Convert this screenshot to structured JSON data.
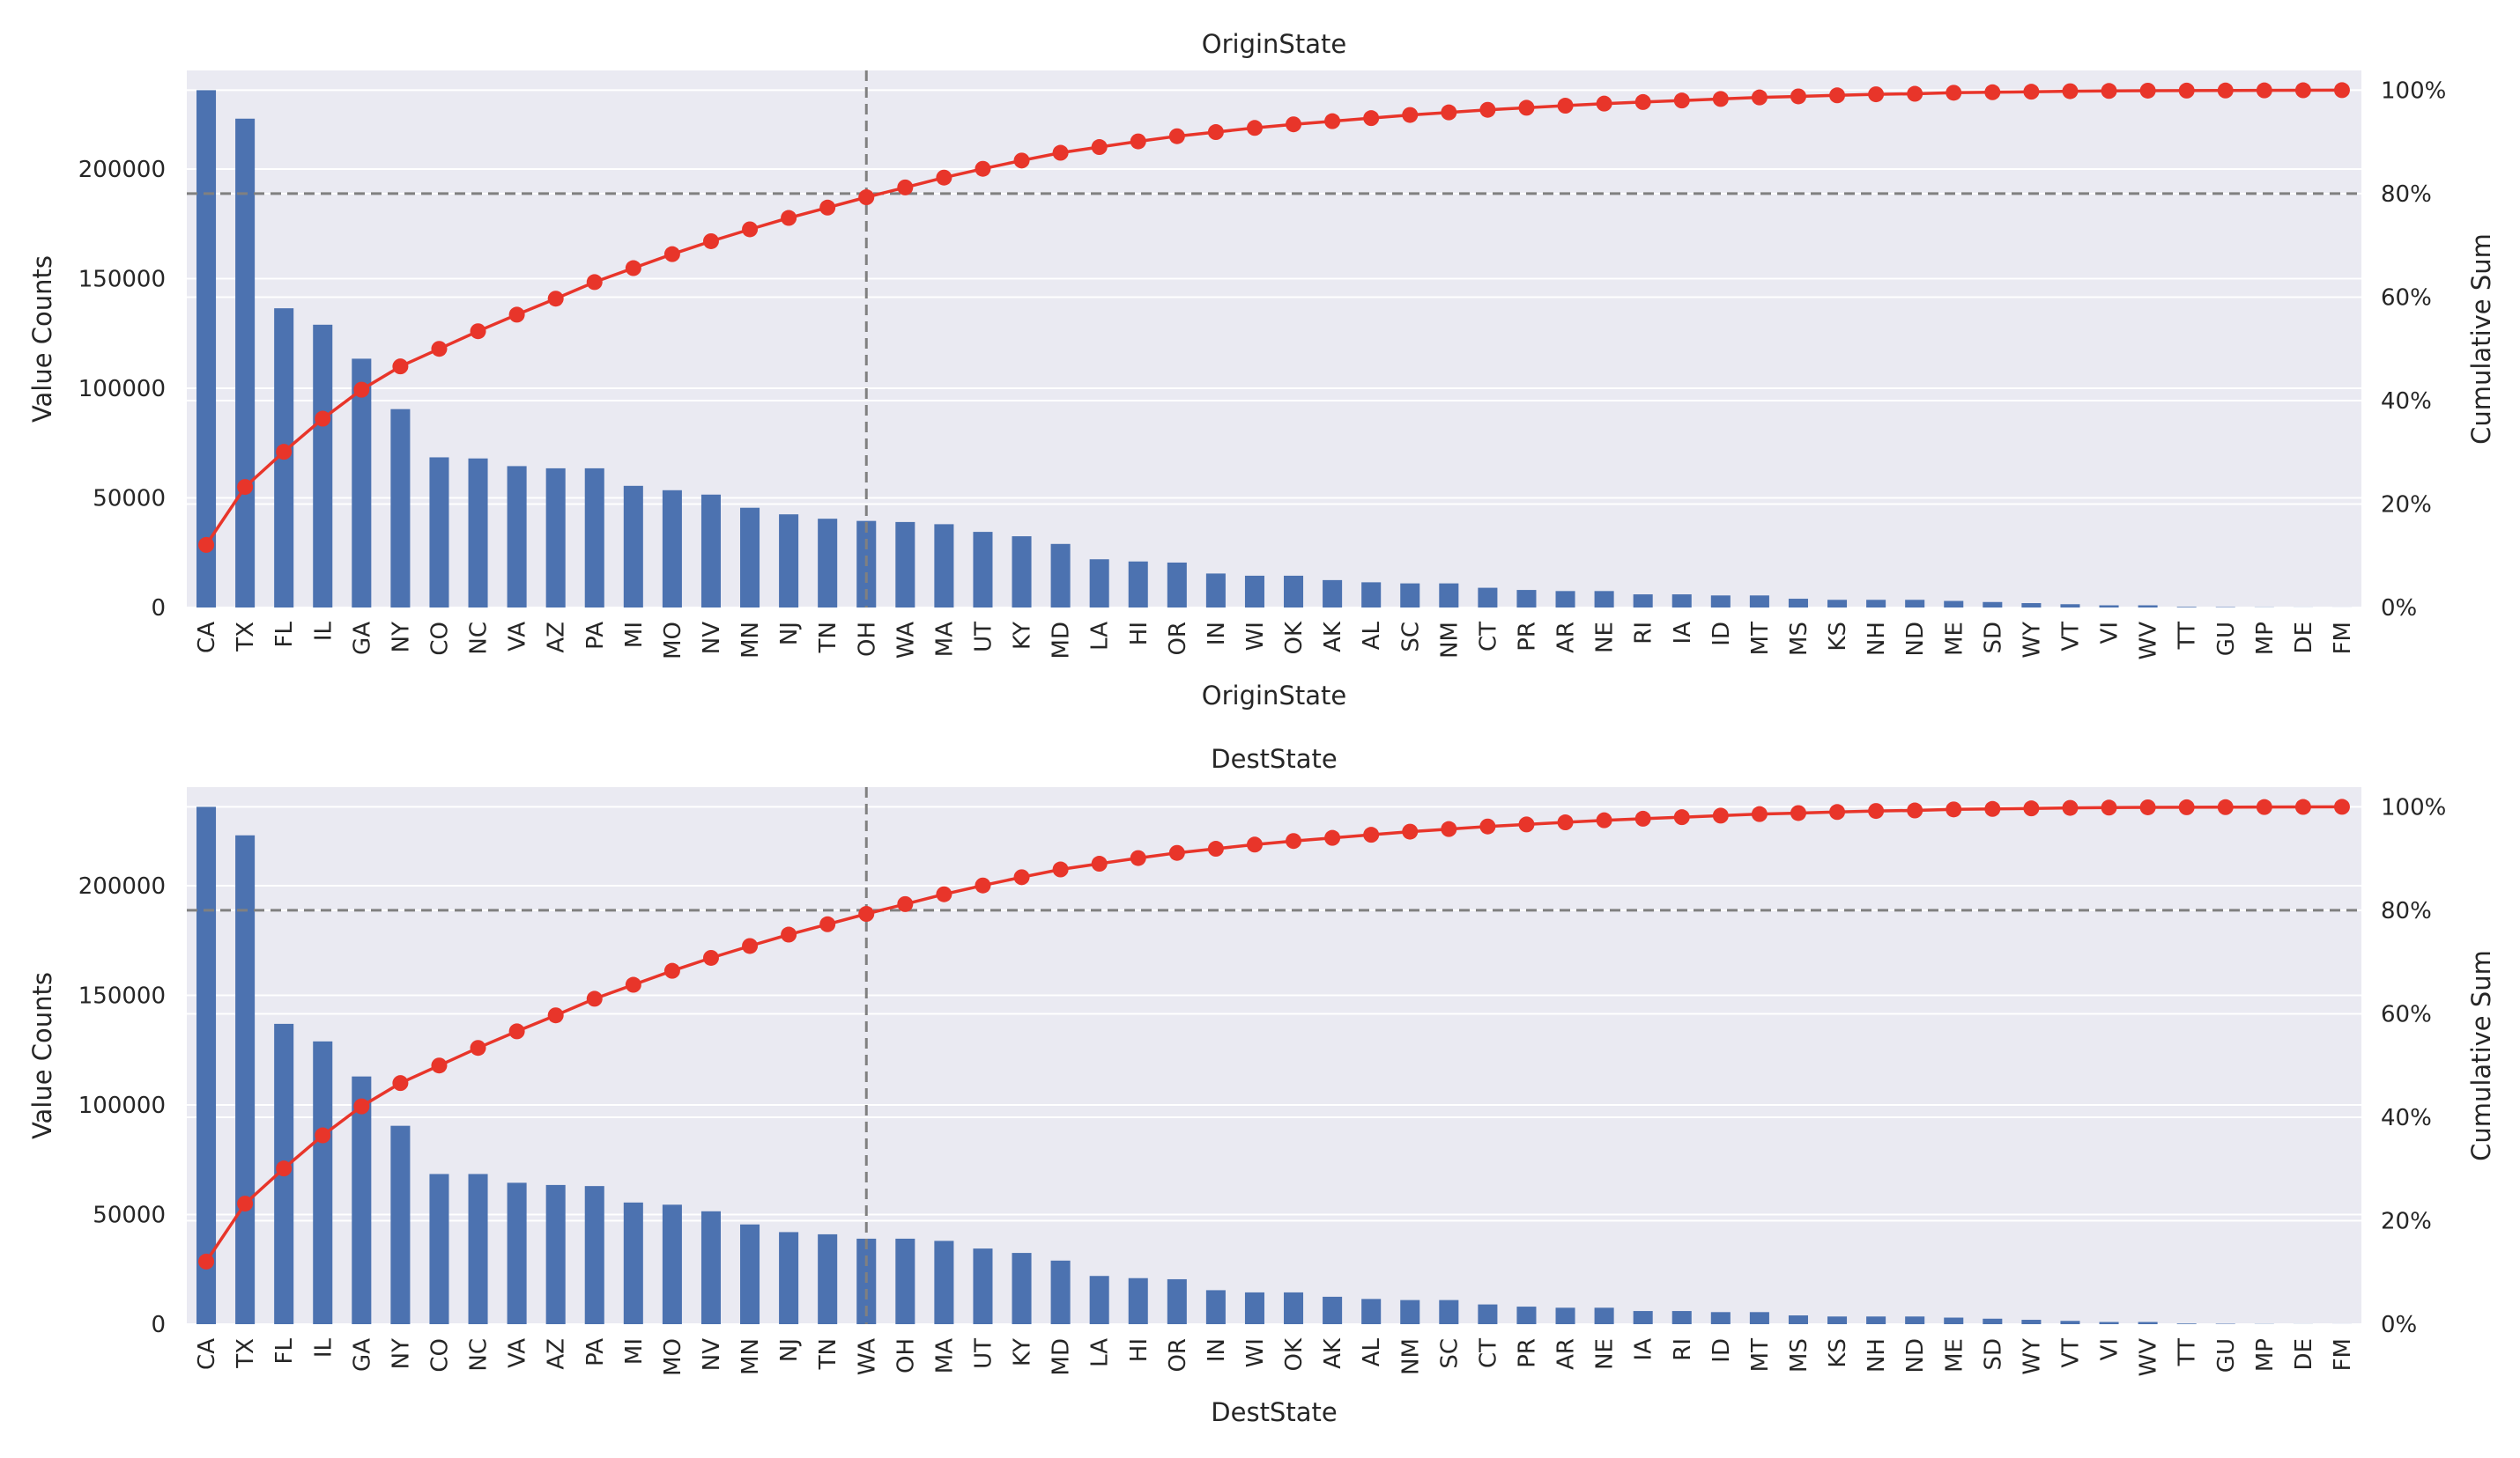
{
  "colors": {
    "bar": "#4c72b0",
    "line": "#e8352a",
    "background": "#eaeaf2",
    "grid": "#ffffff",
    "reference": "#808080"
  },
  "chart_data": [
    {
      "type": "bar",
      "title": "OriginState",
      "xlabel": "OriginState",
      "ylabel": "Value Counts",
      "y2label": "Cumulative Sum",
      "ylim": [
        0,
        245000
      ],
      "yticks": [
        0,
        50000,
        100000,
        150000,
        200000
      ],
      "y2ticks": [
        "0%",
        "20%",
        "40%",
        "60%",
        "80%",
        "100%"
      ],
      "grid": true,
      "reference_lines": {
        "cumulative_percent": 80,
        "category": "OH"
      },
      "categories": [
        "CA",
        "TX",
        "FL",
        "IL",
        "GA",
        "NY",
        "CO",
        "NC",
        "VA",
        "AZ",
        "PA",
        "MI",
        "MO",
        "NV",
        "MN",
        "NJ",
        "TN",
        "OH",
        "WA",
        "MA",
        "UT",
        "KY",
        "MD",
        "LA",
        "HI",
        "OR",
        "IN",
        "WI",
        "OK",
        "AK",
        "AL",
        "SC",
        "NM",
        "CT",
        "PR",
        "AR",
        "NE",
        "RI",
        "IA",
        "ID",
        "MT",
        "MS",
        "KS",
        "NH",
        "ND",
        "ME",
        "SD",
        "WY",
        "VT",
        "VI",
        "WV",
        "TT",
        "GU",
        "MP",
        "DE",
        "FM"
      ],
      "series": [
        {
          "type": "bar",
          "values": [
            236000,
            223000,
            136500,
            129000,
            113500,
            90500,
            68500,
            68000,
            64500,
            63500,
            63500,
            55500,
            53500,
            51500,
            45500,
            42500,
            40500,
            39500,
            39000,
            38000,
            34500,
            32500,
            29000,
            22000,
            21000,
            20500,
            15500,
            14500,
            14500,
            12500,
            11500,
            11000,
            11000,
            9000,
            8000,
            7500,
            7500,
            6000,
            6000,
            5500,
            5500,
            4000,
            3500,
            3500,
            3500,
            3000,
            2500,
            2000,
            1500,
            1000,
            1000,
            300,
            200,
            100,
            50,
            30
          ]
        },
        {
          "type": "line",
          "values": [
            12.1,
            23.3,
            30.1,
            36.5,
            42.1,
            46.6,
            50.0,
            53.4,
            56.6,
            59.7,
            62.9,
            65.6,
            68.3,
            70.8,
            73.1,
            75.3,
            77.3,
            79.3,
            81.2,
            83.1,
            84.8,
            86.4,
            87.9,
            89.0,
            90.1,
            91.1,
            91.9,
            92.7,
            93.4,
            94.0,
            94.6,
            95.2,
            95.7,
            96.2,
            96.6,
            97.0,
            97.4,
            97.7,
            98.0,
            98.3,
            98.6,
            98.8,
            99.0,
            99.2,
            99.3,
            99.5,
            99.6,
            99.7,
            99.8,
            99.85,
            99.9,
            99.92,
            99.94,
            99.96,
            99.98,
            100.0
          ]
        }
      ]
    },
    {
      "type": "bar",
      "title": "DestState",
      "xlabel": "DestState",
      "ylabel": "Value Counts",
      "y2label": "Cumulative Sum",
      "ylim": [
        0,
        245000
      ],
      "yticks": [
        0,
        50000,
        100000,
        150000,
        200000
      ],
      "y2ticks": [
        "0%",
        "20%",
        "40%",
        "60%",
        "80%",
        "100%"
      ],
      "grid": true,
      "reference_lines": {
        "cumulative_percent": 80,
        "category": "WA"
      },
      "categories": [
        "CA",
        "TX",
        "FL",
        "IL",
        "GA",
        "NY",
        "CO",
        "NC",
        "VA",
        "AZ",
        "PA",
        "MI",
        "MO",
        "NV",
        "MN",
        "NJ",
        "TN",
        "WA",
        "OH",
        "MA",
        "UT",
        "KY",
        "MD",
        "LA",
        "HI",
        "OR",
        "IN",
        "WI",
        "OK",
        "AK",
        "AL",
        "NM",
        "SC",
        "CT",
        "PR",
        "AR",
        "NE",
        "IA",
        "RI",
        "ID",
        "MT",
        "MS",
        "KS",
        "NH",
        "ND",
        "ME",
        "SD",
        "WY",
        "VT",
        "VI",
        "WV",
        "TT",
        "GU",
        "MP",
        "DE",
        "FM"
      ],
      "series": [
        {
          "type": "bar",
          "values": [
            236000,
            223000,
            137000,
            129000,
            113000,
            90500,
            68500,
            68500,
            64500,
            63500,
            63000,
            55500,
            54500,
            51500,
            45500,
            42000,
            41000,
            39000,
            39000,
            38000,
            34500,
            32500,
            29000,
            22000,
            21000,
            20500,
            15500,
            14500,
            14500,
            12500,
            11500,
            11000,
            11000,
            9000,
            8000,
            7500,
            7500,
            6000,
            6000,
            5500,
            5500,
            4000,
            3500,
            3500,
            3500,
            3000,
            2500,
            2000,
            1500,
            1000,
            1000,
            300,
            200,
            100,
            50,
            30
          ]
        },
        {
          "type": "line",
          "values": [
            12.1,
            23.3,
            30.1,
            36.5,
            42.1,
            46.6,
            50.0,
            53.4,
            56.6,
            59.7,
            62.9,
            65.6,
            68.3,
            70.8,
            73.1,
            75.3,
            77.3,
            79.3,
            81.2,
            83.1,
            84.8,
            86.4,
            87.9,
            89.0,
            90.1,
            91.1,
            91.9,
            92.7,
            93.4,
            94.0,
            94.6,
            95.2,
            95.7,
            96.2,
            96.6,
            97.0,
            97.4,
            97.7,
            98.0,
            98.3,
            98.6,
            98.8,
            99.0,
            99.2,
            99.3,
            99.5,
            99.6,
            99.7,
            99.8,
            99.85,
            99.9,
            99.92,
            99.94,
            99.96,
            99.98,
            100.0
          ]
        }
      ]
    }
  ]
}
